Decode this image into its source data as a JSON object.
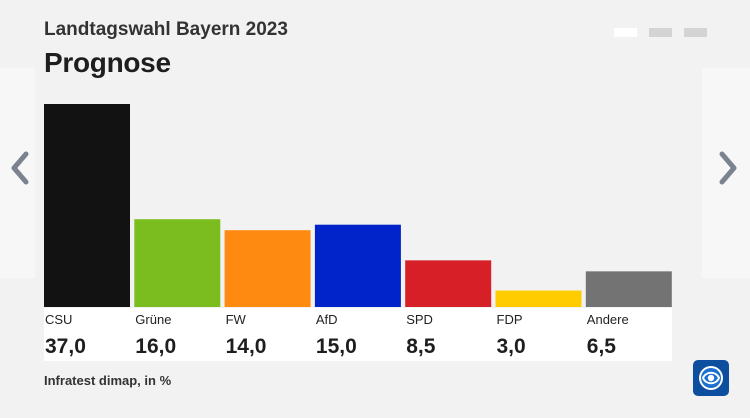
{
  "header": {
    "supertitle": "Landtagswahl Bayern 2023",
    "title": "Prognose"
  },
  "pagination": {
    "count": 3,
    "active_index": 0
  },
  "footer": {
    "source": "Infratest dimap, in %"
  },
  "icons": {
    "prev": "chevron-left-icon",
    "next": "chevron-right-icon",
    "logo": "ard-tagesschau-logo-icon"
  },
  "chart_data": {
    "type": "bar",
    "title": "Prognose",
    "categories": [
      "CSU",
      "Grüne",
      "FW",
      "AfD",
      "SPD",
      "FDP",
      "Andere"
    ],
    "values": [
      37.0,
      16.0,
      14.0,
      15.0,
      8.5,
      3.0,
      6.5
    ],
    "value_labels": [
      "37,0",
      "16,0",
      "14,0",
      "15,0",
      "8,5",
      "3,0",
      "6,5"
    ],
    "colors": [
      "#121212",
      "#7bbd1f",
      "#ff8a12",
      "#0024c9",
      "#d61f26",
      "#ffcc00",
      "#737373"
    ],
    "ylim": [
      0,
      37
    ],
    "xlabel": "",
    "ylabel": "",
    "grid": false,
    "legend": "none"
  }
}
